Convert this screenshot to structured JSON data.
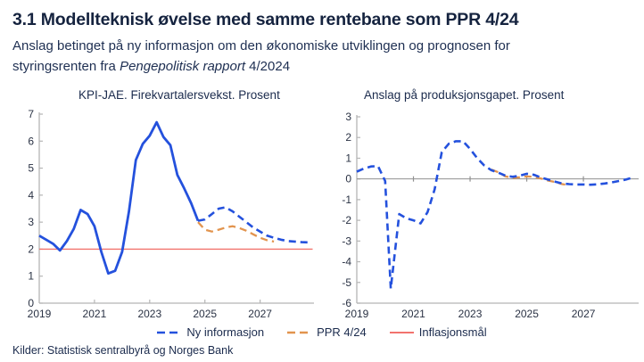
{
  "page": {
    "title": "3.1 Modellteknisk øvelse med samme rentebane som PPR 4/24",
    "subtitle": {
      "prefix": "Anslag betinget på ny informasjon om den økonomiske utviklingen og prognosen for styringsrenten fra ",
      "italic": "Pengepolitisk rapport",
      "suffix": " 4/2024"
    },
    "sources": "Kilder: Statistisk sentralbyrå og Norges Bank"
  },
  "colors": {
    "accent_blue": "#2451dd",
    "accent_orange": "#e2944e",
    "accent_red": "#f2736d",
    "text_navy": "#1b2b4d",
    "axis_gray": "#b5b5b5",
    "zero_gray": "#909090"
  },
  "legend": {
    "items": [
      {
        "id": "ny-informasjon",
        "label": "Ny informasjon",
        "color": "#2451dd",
        "dash": true
      },
      {
        "id": "ppr-4-24",
        "label": "PPR 4/24",
        "color": "#e2944e",
        "dash": true
      },
      {
        "id": "inflasjonsmal",
        "label": "Inflasjonsmål",
        "color": "#f2736d",
        "dash": false
      }
    ]
  },
  "chart_data": [
    {
      "id": "kpi-jae",
      "type": "line",
      "title": "KPI-JAE. Firekvartalersvekst. Prosent",
      "xlim": [
        2019,
        2028.95
      ],
      "ylim": [
        0,
        7
      ],
      "yticks": [
        0,
        1,
        2,
        3,
        4,
        5,
        6,
        7
      ],
      "xlabels": [
        2019,
        2021,
        2023,
        2025,
        2027
      ],
      "xtickmarks": [
        2021,
        2023,
        2025,
        2027
      ],
      "zero_line": false,
      "legend_position": "bottom-center",
      "series": [
        {
          "name": "Inflasjonsmål",
          "color": "#f2736d",
          "dash": false,
          "width": 1.4,
          "points": [
            [
              2019.0,
              2
            ],
            [
              2028.9,
              2
            ]
          ]
        },
        {
          "name": "PPR 4/24",
          "color": "#e2944e",
          "dash": true,
          "width": 2.3,
          "points": [
            [
              2024.75,
              3.0
            ],
            [
              2025.0,
              2.72
            ],
            [
              2025.25,
              2.65
            ],
            [
              2025.5,
              2.72
            ],
            [
              2025.75,
              2.8
            ],
            [
              2026.0,
              2.85
            ],
            [
              2026.25,
              2.78
            ],
            [
              2026.5,
              2.68
            ],
            [
              2026.75,
              2.55
            ],
            [
              2027.0,
              2.42
            ],
            [
              2027.25,
              2.33
            ],
            [
              2027.5,
              2.28
            ]
          ]
        },
        {
          "name": "Ny informasjon (anslag)",
          "color": "#2451dd",
          "dash": true,
          "width": 2.6,
          "points": [
            [
              2024.75,
              3.05
            ],
            [
              2025.0,
              3.1
            ],
            [
              2025.25,
              3.3
            ],
            [
              2025.5,
              3.5
            ],
            [
              2025.75,
              3.55
            ],
            [
              2026.0,
              3.4
            ],
            [
              2026.25,
              3.2
            ],
            [
              2026.5,
              3.0
            ],
            [
              2026.75,
              2.8
            ],
            [
              2027.0,
              2.65
            ],
            [
              2027.25,
              2.5
            ],
            [
              2027.5,
              2.42
            ],
            [
              2027.75,
              2.35
            ],
            [
              2028.0,
              2.3
            ],
            [
              2028.25,
              2.28
            ],
            [
              2028.5,
              2.26
            ],
            [
              2028.75,
              2.25
            ]
          ]
        },
        {
          "name": "Ny informasjon (historikk)",
          "color": "#2451dd",
          "dash": false,
          "width": 2.8,
          "points": [
            [
              2019.0,
              2.5
            ],
            [
              2019.25,
              2.35
            ],
            [
              2019.5,
              2.2
            ],
            [
              2019.75,
              1.95
            ],
            [
              2020.0,
              2.3
            ],
            [
              2020.25,
              2.75
            ],
            [
              2020.5,
              3.45
            ],
            [
              2020.75,
              3.3
            ],
            [
              2021.0,
              2.85
            ],
            [
              2021.25,
              1.9
            ],
            [
              2021.5,
              1.1
            ],
            [
              2021.75,
              1.2
            ],
            [
              2022.0,
              1.9
            ],
            [
              2022.25,
              3.4
            ],
            [
              2022.5,
              5.3
            ],
            [
              2022.75,
              5.9
            ],
            [
              2023.0,
              6.2
            ],
            [
              2023.25,
              6.7
            ],
            [
              2023.5,
              6.15
            ],
            [
              2023.75,
              5.85
            ],
            [
              2024.0,
              4.75
            ],
            [
              2024.25,
              4.25
            ],
            [
              2024.5,
              3.7
            ],
            [
              2024.75,
              3.05
            ]
          ]
        }
      ]
    },
    {
      "id": "produksjonsgapet",
      "type": "line",
      "title": "Anslag på produksjonsgapet. Prosent",
      "xlim": [
        2019,
        2028.95
      ],
      "ylim": [
        -6,
        3
      ],
      "yticks": [
        -6,
        -5,
        -4,
        -3,
        -2,
        -1,
        0,
        1,
        2,
        3
      ],
      "xlabels": [
        2019,
        2021,
        2023,
        2025,
        2027
      ],
      "xtickmarks": [
        2021,
        2023,
        2025,
        2027
      ],
      "zero_line": true,
      "legend_position": "bottom-center",
      "series": [
        {
          "name": "PPR 4/24",
          "color": "#e2944e",
          "dash": true,
          "width": 2.3,
          "points": [
            [
              2023.75,
              0.45
            ],
            [
              2024.0,
              0.32
            ],
            [
              2024.25,
              0.12
            ],
            [
              2024.5,
              0.05
            ],
            [
              2024.75,
              0.08
            ],
            [
              2025.0,
              0.12
            ],
            [
              2025.25,
              0.1
            ],
            [
              2025.5,
              0.02
            ],
            [
              2025.75,
              -0.08
            ],
            [
              2026.0,
              -0.15
            ],
            [
              2026.25,
              -0.25
            ],
            [
              2026.5,
              -0.3
            ]
          ]
        },
        {
          "name": "Ny informasjon",
          "color": "#2451dd",
          "dash": true,
          "width": 2.6,
          "points": [
            [
              2019.0,
              0.35
            ],
            [
              2019.25,
              0.5
            ],
            [
              2019.5,
              0.6
            ],
            [
              2019.75,
              0.62
            ],
            [
              2020.0,
              -0.1
            ],
            [
              2020.2,
              -5.3
            ],
            [
              2020.5,
              -1.7
            ],
            [
              2020.75,
              -1.9
            ],
            [
              2021.0,
              -2.0
            ],
            [
              2021.25,
              -2.15
            ],
            [
              2021.5,
              -1.6
            ],
            [
              2021.75,
              -0.5
            ],
            [
              2022.0,
              1.3
            ],
            [
              2022.25,
              1.7
            ],
            [
              2022.5,
              1.82
            ],
            [
              2022.75,
              1.82
            ],
            [
              2023.0,
              1.45
            ],
            [
              2023.25,
              1.0
            ],
            [
              2023.5,
              0.65
            ],
            [
              2023.75,
              0.42
            ],
            [
              2024.0,
              0.3
            ],
            [
              2024.25,
              0.16
            ],
            [
              2024.5,
              0.1
            ],
            [
              2024.75,
              0.16
            ],
            [
              2025.0,
              0.25
            ],
            [
              2025.25,
              0.2
            ],
            [
              2025.5,
              0.07
            ],
            [
              2025.75,
              -0.03
            ],
            [
              2026.0,
              -0.13
            ],
            [
              2026.25,
              -0.22
            ],
            [
              2026.5,
              -0.25
            ],
            [
              2026.75,
              -0.27
            ],
            [
              2027.0,
              -0.27
            ],
            [
              2027.25,
              -0.28
            ],
            [
              2027.5,
              -0.26
            ],
            [
              2027.75,
              -0.22
            ],
            [
              2028.0,
              -0.17
            ],
            [
              2028.25,
              -0.1
            ],
            [
              2028.5,
              -0.03
            ],
            [
              2028.75,
              0.07
            ]
          ]
        }
      ]
    }
  ]
}
